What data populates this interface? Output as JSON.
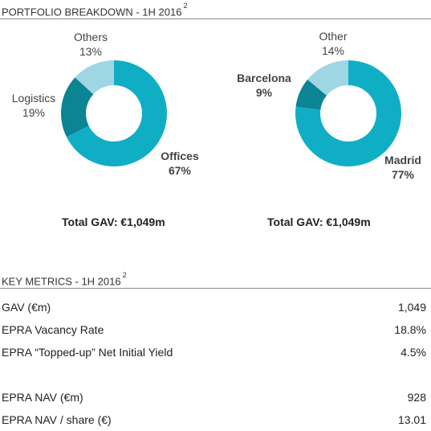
{
  "portfolio": {
    "title": "PORTFOLIO BREAKDOWN - 1H 2016",
    "footnote": "2"
  },
  "chart_data": [
    {
      "type": "pie",
      "variant": "donut",
      "categories": [
        "Offices",
        "Logistics",
        "Others"
      ],
      "values": [
        67,
        19,
        13
      ],
      "value_labels": [
        "67%",
        "19%",
        "13%"
      ],
      "colors": [
        "#10aec4",
        "#0b8494",
        "#9fd6e4"
      ],
      "total_label": "Total GAV: €1,049m"
    },
    {
      "type": "pie",
      "variant": "donut",
      "categories": [
        "Madrid",
        "Barcelona",
        "Other"
      ],
      "values": [
        77,
        9,
        14
      ],
      "value_labels": [
        "77%",
        "9%",
        "14%"
      ],
      "colors": [
        "#10aec4",
        "#0b8494",
        "#9fd6e4"
      ],
      "total_label": "Total GAV: €1,049m"
    }
  ],
  "metrics": {
    "title": "KEY METRICS - 1H 2016",
    "footnote": "2",
    "rows": [
      {
        "label": "GAV (€m)",
        "value": "1,049"
      },
      {
        "label": "EPRA Vacancy Rate",
        "value": "18.8%"
      },
      {
        "label": "EPRA “Topped-up” Net Initial Yield",
        "value": "4.5%"
      },
      {
        "label": "EPRA NAV (€m)",
        "value": "928"
      },
      {
        "label": "EPRA NAV / share (€)",
        "value": "13.01"
      }
    ]
  }
}
